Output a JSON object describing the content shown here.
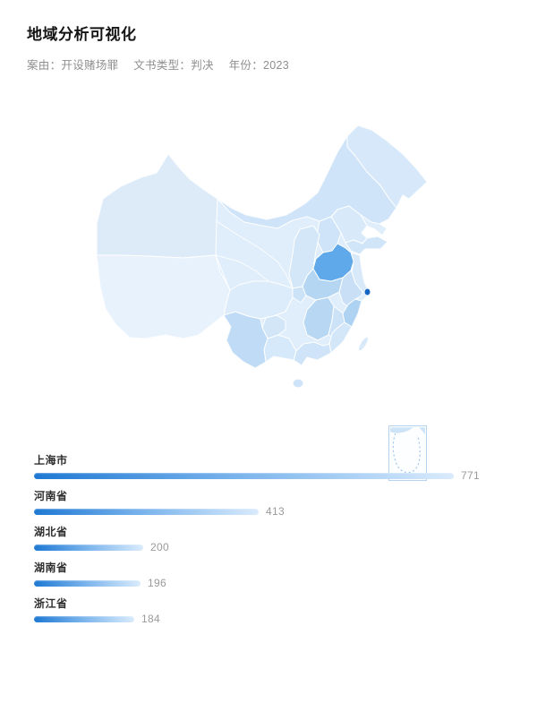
{
  "header": {
    "title": "地域分析可视化",
    "colon": "：",
    "filters": [
      {
        "label": "案由",
        "value": "开设赌场罪"
      },
      {
        "label": "文书类型",
        "value": "判决"
      },
      {
        "label": "年份",
        "value": "2023"
      }
    ]
  },
  "map": {
    "region": "china",
    "highlighted_province": "河南省",
    "secondary_highlight": "上海市",
    "inset": "south-china-sea"
  },
  "chart_data": {
    "type": "bar",
    "orientation": "horizontal",
    "title": "",
    "xlabel": "",
    "ylabel": "",
    "categories": [
      "上海市",
      "河南省",
      "湖北省",
      "湖南省",
      "浙江省"
    ],
    "values": [
      771,
      413,
      200,
      196,
      184
    ],
    "value_labels": [
      "771",
      "413",
      "200",
      "196",
      "184"
    ],
    "max_value": 771,
    "grid": false,
    "legend": false
  },
  "colors": {
    "bar_start": "#1e78d3",
    "bar_end": "#d9ebfc",
    "map_base": "#e0edfa",
    "map_highlight": "#5fa8e9",
    "shanghai_dot": "#1565c4",
    "value_label": "#9a9a9a"
  }
}
